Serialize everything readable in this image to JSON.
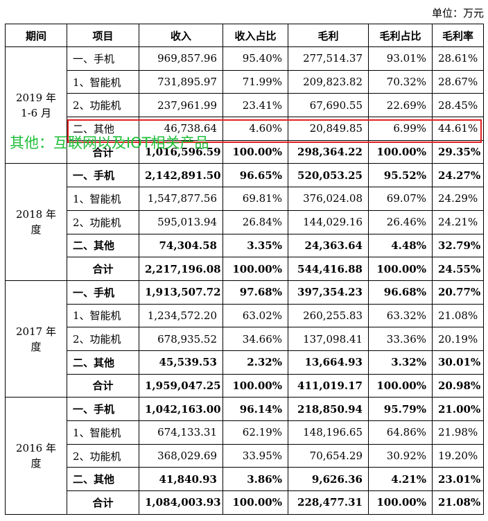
{
  "unit_label": "单位：万元",
  "headers": [
    "期间",
    "项目",
    "收入",
    "收入占比",
    "毛利",
    "毛利占比",
    "毛利率"
  ],
  "periods": [
    {
      "label_line1": "2019 年",
      "label_line2": "1-6 月",
      "rows": [
        {
          "item": "一、手机",
          "revenue": "969,857.96",
          "rev_share": "95.40%",
          "gross": "277,514.37",
          "gross_share": "93.01%",
          "margin": "28.61%"
        },
        {
          "item": "1、智能机",
          "revenue": "731,895.97",
          "rev_share": "71.99%",
          "gross": "209,823.82",
          "gross_share": "70.32%",
          "margin": "28.67%"
        },
        {
          "item": "2、功能机",
          "revenue": "237,961.99",
          "rev_share": "23.41%",
          "gross": "67,690.55",
          "gross_share": "22.69%",
          "margin": "28.45%"
        },
        {
          "item": "二、其他",
          "revenue": "46,738.64",
          "rev_share": "4.60%",
          "gross": "20,849.85",
          "gross_share": "6.99%",
          "margin": "44.61%"
        },
        {
          "item": "合计",
          "revenue": "1,016,596.59",
          "rev_share": "100.00%",
          "gross": "298,364.22",
          "gross_share": "100.00%",
          "margin": "29.35%"
        }
      ]
    },
    {
      "label_line1": "2018 年",
      "label_line2": "度",
      "rows": [
        {
          "item": "一、手机",
          "revenue": "2,142,891.50",
          "rev_share": "96.65%",
          "gross": "520,053.25",
          "gross_share": "95.52%",
          "margin": "24.27%"
        },
        {
          "item": "1、智能机",
          "revenue": "1,547,877.56",
          "rev_share": "69.81%",
          "gross": "376,024.08",
          "gross_share": "69.07%",
          "margin": "24.29%"
        },
        {
          "item": "2、功能机",
          "revenue": "595,013.94",
          "rev_share": "26.84%",
          "gross": "144,029.16",
          "gross_share": "26.46%",
          "margin": "24.21%"
        },
        {
          "item": "二、其他",
          "revenue": "74,304.58",
          "rev_share": "3.35%",
          "gross": "24,363.64",
          "gross_share": "4.48%",
          "margin": "32.79%"
        },
        {
          "item": "合计",
          "revenue": "2,217,196.08",
          "rev_share": "100.00%",
          "gross": "544,416.88",
          "gross_share": "100.00%",
          "margin": "24.55%"
        }
      ]
    },
    {
      "label_line1": "2017 年",
      "label_line2": "度",
      "rows": [
        {
          "item": "一、手机",
          "revenue": "1,913,507.72",
          "rev_share": "97.68%",
          "gross": "397,354.23",
          "gross_share": "96.68%",
          "margin": "20.77%"
        },
        {
          "item": "1、智能机",
          "revenue": "1,234,572.20",
          "rev_share": "63.02%",
          "gross": "260,255.83",
          "gross_share": "63.32%",
          "margin": "21.08%"
        },
        {
          "item": "2、功能机",
          "revenue": "678,935.52",
          "rev_share": "34.66%",
          "gross": "137,098.41",
          "gross_share": "33.36%",
          "margin": "20.19%"
        },
        {
          "item": "二、其他",
          "revenue": "45,539.53",
          "rev_share": "2.32%",
          "gross": "13,664.93",
          "gross_share": "3.32%",
          "margin": "30.01%"
        },
        {
          "item": "合计",
          "revenue": "1,959,047.25",
          "rev_share": "100.00%",
          "gross": "411,019.17",
          "gross_share": "100.00%",
          "margin": "20.98%"
        }
      ]
    },
    {
      "label_line1": "2016 年",
      "label_line2": "度",
      "rows": [
        {
          "item": "一、手机",
          "revenue": "1,042,163.00",
          "rev_share": "96.14%",
          "gross": "218,850.94",
          "gross_share": "95.79%",
          "margin": "21.00%"
        },
        {
          "item": "1、智能机",
          "revenue": "674,133.31",
          "rev_share": "62.19%",
          "gross": "148,196.65",
          "gross_share": "64.86%",
          "margin": "21.98%"
        },
        {
          "item": "2、功能机",
          "revenue": "368,029.69",
          "rev_share": "33.95%",
          "gross": "70,654.29",
          "gross_share": "30.92%",
          "margin": "19.20%"
        },
        {
          "item": "二、其他",
          "revenue": "41,840.93",
          "rev_share": "3.86%",
          "gross": "9,626.36",
          "gross_share": "4.21%",
          "margin": "23.01%"
        },
        {
          "item": "合计",
          "revenue": "1,084,003.93",
          "rev_share": "100.00%",
          "gross": "228,477.31",
          "gross_share": "100.00%",
          "margin": "21.08%"
        }
      ]
    }
  ],
  "annotation": "其他：互联网以及IOT相关产品",
  "highlight_color": "#e02020",
  "annotation_color": "#1fbf3a"
}
